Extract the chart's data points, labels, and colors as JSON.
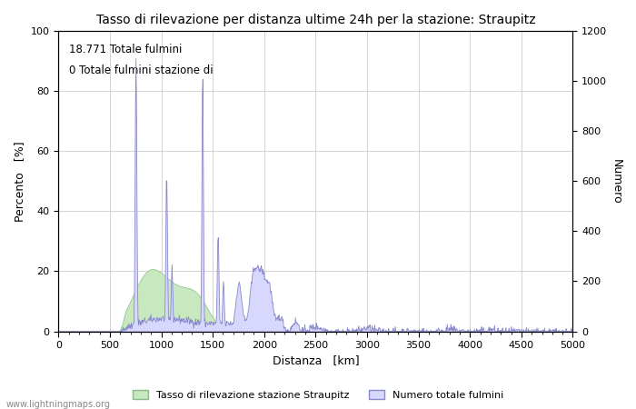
{
  "title": "Tasso di rilevazione per distanza ultime 24h per la stazione: Straupitz",
  "xlabel": "Distanza   [km]",
  "ylabel_left": "Percento   [%]",
  "ylabel_right": "Numero",
  "annotation_line1": "18.771 Totale fulmini",
  "annotation_line2": "0 Totale fulmini stazione di",
  "legend_label1": "Tasso di rilevazione stazione Straupitz",
  "legend_label2": "Numero totale fulmini",
  "watermark": "www.lightningmaps.org",
  "xlim": [
    0,
    5000
  ],
  "ylim_left": [
    0,
    100
  ],
  "ylim_right": [
    0,
    1200
  ],
  "xticks": [
    0,
    500,
    1000,
    1500,
    2000,
    2500,
    3000,
    3500,
    4000,
    4500,
    5000
  ],
  "yticks_left": [
    0,
    20,
    40,
    60,
    80,
    100
  ],
  "yticks_right": [
    0,
    200,
    400,
    600,
    800,
    1000,
    1200
  ],
  "fill_blue_color": "#d8d8ff",
  "fill_blue_edge": "#8888cc",
  "fill_green_color": "#c8e8c0",
  "fill_green_edge": "#88bb88",
  "bg_color": "#ffffff",
  "grid_color": "#cccccc",
  "figsize": [
    7.0,
    4.5
  ],
  "dpi": 100
}
